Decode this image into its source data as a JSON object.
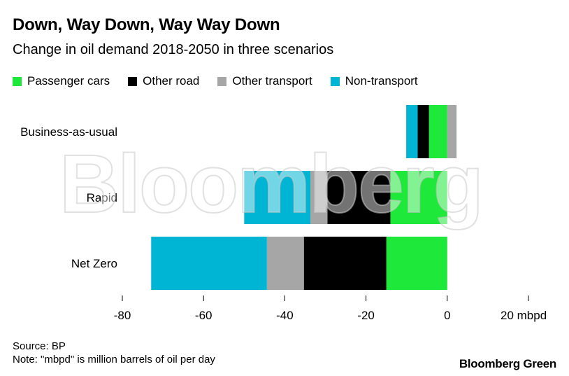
{
  "header": {
    "title": "Down, Way Down, Way Way Down",
    "subtitle": "Change in oil demand 2018-2050 in three scenarios"
  },
  "legend": [
    {
      "label": "Passenger cars",
      "color": "#1ee83a"
    },
    {
      "label": "Other road",
      "color": "#000000"
    },
    {
      "label": "Other transport",
      "color": "#a6a6a6"
    },
    {
      "label": "Non-transport",
      "color": "#00b5d3"
    }
  ],
  "chart_data": {
    "type": "bar",
    "orientation": "horizontal",
    "stacked": true,
    "title": "Down, Way Down, Way Way Down",
    "subtitle": "Change in oil demand 2018-2050 in three scenarios",
    "categories": [
      "Business-as-usual",
      "Rapid",
      "Net Zero"
    ],
    "series": [
      {
        "name": "Passenger cars",
        "values": [
          -4.5,
          -14,
          -15
        ],
        "color": "#1ee83a"
      },
      {
        "name": "Other road",
        "values": [
          -2.8,
          -15.5,
          -20.3
        ],
        "color": "#000000"
      },
      {
        "name": "Other transport",
        "values": [
          2.3,
          -4.2,
          -9.1
        ],
        "color": "#a6a6a6"
      },
      {
        "name": "Non-transport",
        "values": [
          -2.8,
          -16.3,
          -28.5
        ],
        "color": "#00b5d3"
      }
    ],
    "xlim": [
      -80,
      20
    ],
    "xticks": [
      -80,
      -60,
      -40,
      -20,
      0,
      20
    ],
    "xtick_labels": [
      "-80",
      "-60",
      "-40",
      "-20",
      "0",
      "20 mbpd"
    ],
    "xlabel": "",
    "ylabel": ""
  },
  "watermark": "Bloomberg",
  "footer": {
    "source": "Source: BP",
    "note": "Note: \"mbpd\" is million barrels of oil per day",
    "brand": "Bloomberg Green"
  }
}
